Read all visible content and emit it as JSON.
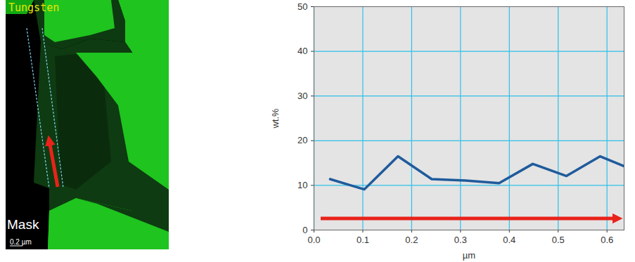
{
  "chart_data": {
    "type": "line",
    "x_label": "µm",
    "y_label": "wt.%",
    "x": [
      0.033,
      0.103,
      0.172,
      0.241,
      0.31,
      0.379,
      0.448,
      0.517,
      0.586,
      0.635
    ],
    "values": [
      11.4,
      9.1,
      16.5,
      11.4,
      11.1,
      10.5,
      14.8,
      12.1,
      16.5,
      14.3
    ],
    "color": "#1f5b9c",
    "xlim": [
      0,
      0.635
    ],
    "xticks": [
      {
        "value": 0,
        "label": "0.0"
      },
      0.1,
      0.2,
      0.3,
      0.4,
      0.5,
      0.6
    ],
    "ylim": [
      0,
      50
    ],
    "yticks": [
      0,
      10,
      20,
      30,
      40,
      50
    ],
    "grid": true,
    "annotations": [
      "Tungsten",
      "Mask",
      "0.2 µm"
    ]
  }
}
